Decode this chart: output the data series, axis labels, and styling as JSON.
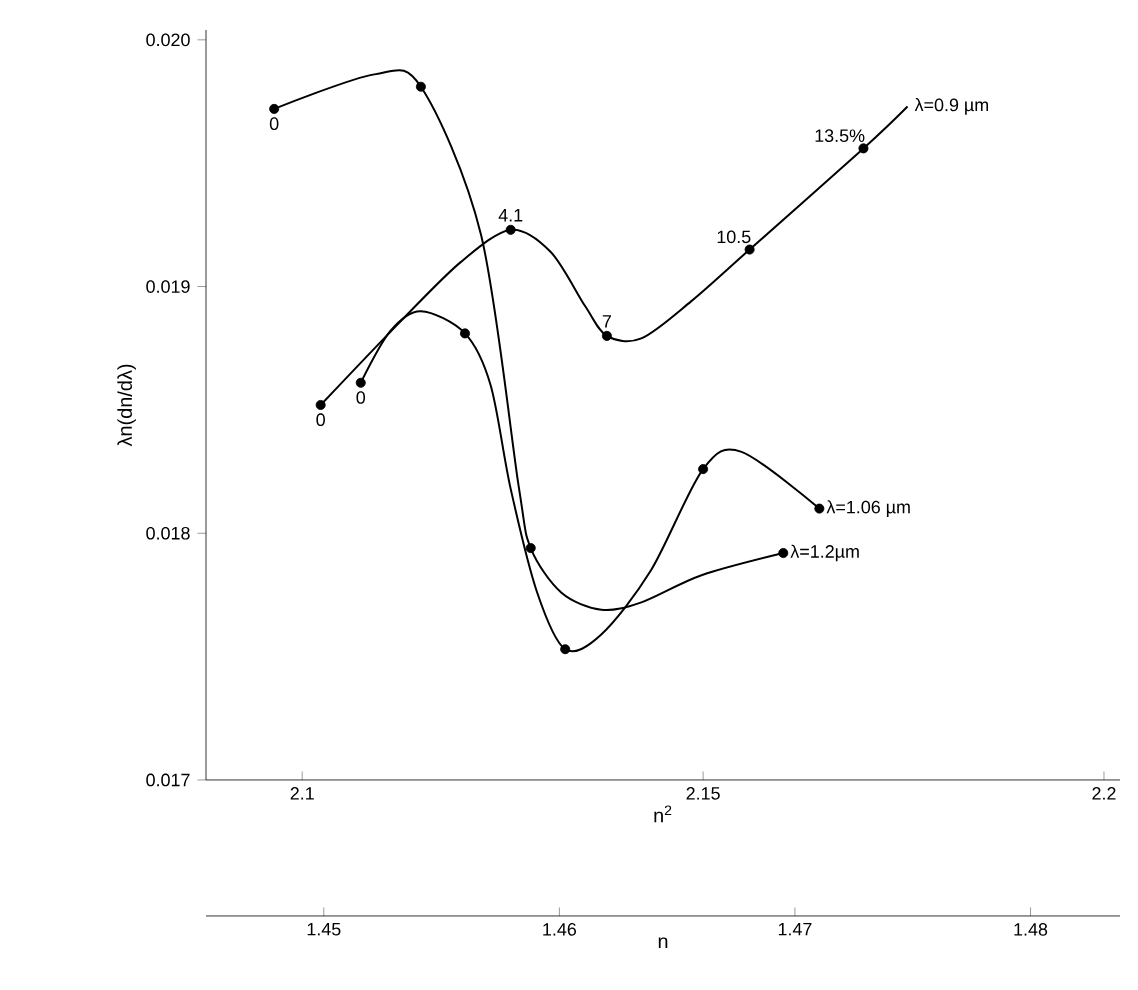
{
  "chart_data": {
    "type": "line",
    "xlabel": "n$^{2}$",
    "ylabel": "λn(dn/dλ)",
    "x2label": "n",
    "xlim": [
      2.088,
      2.202
    ],
    "ylim": [
      0.017,
      0.02004
    ],
    "xticks": [
      2.1,
      2.15,
      2.2
    ],
    "yticks": [
      0.017,
      0.018,
      0.019,
      {
        "value": 0.02,
        "label": "0.020"
      }
    ],
    "x2lim": [
      1.445,
      1.4838
    ],
    "x2ticks": [
      1.45,
      1.46,
      1.47,
      1.48
    ],
    "series": [
      {
        "name": "λ=0.9 µm",
        "color": "#000000",
        "x": [
          2.1023,
          2.1123,
          2.1198,
          2.126,
          2.131,
          2.1353,
          2.138,
          2.1423,
          2.1485,
          2.1558,
          2.17,
          2.1755
        ],
        "values": [
          0.01852,
          0.01886,
          0.0191,
          0.01923,
          0.01914,
          0.01892,
          0.0188,
          0.01879,
          0.01894,
          0.01915,
          0.01956,
          0.01973
        ]
      },
      {
        "name": "λ=1.06 µm",
        "color": "#000000",
        "x": [
          2.1073,
          2.111,
          2.1148,
          2.1203,
          2.1235,
          2.126,
          2.1293,
          2.1328,
          2.1373,
          2.1435,
          2.15,
          2.1548,
          2.1645
        ],
        "values": [
          0.01861,
          0.01882,
          0.0189,
          0.01881,
          0.0186,
          0.01818,
          0.01776,
          0.01753,
          0.01759,
          0.01785,
          0.01826,
          0.01833,
          0.0181
        ]
      },
      {
        "name": "λ=1.2µm",
        "color": "#000000",
        "x": [
          2.0965,
          2.109,
          2.1148,
          2.1223,
          2.127,
          2.1285,
          2.1323,
          2.1373,
          2.1423,
          2.1498,
          2.16
        ],
        "values": [
          0.01972,
          0.01986,
          0.01981,
          0.01921,
          0.01819,
          0.01794,
          0.01776,
          0.01769,
          0.01772,
          0.01783,
          0.01792
        ]
      },
      {
        "color": "#000000",
        "type": "scatter",
        "marker": "circle",
        "x": [
          2.0965,
          2.1148,
          2.1285,
          2.16,
          2.1023,
          2.126,
          2.138,
          2.1558,
          2.17,
          2.1073,
          2.1203,
          2.1328,
          2.15,
          2.1645
        ],
        "values": [
          0.01972,
          0.01981,
          0.01794,
          0.01792,
          0.01852,
          0.01923,
          0.0188,
          0.01915,
          0.01956,
          0.01861,
          0.01881,
          0.01753,
          0.01826,
          0.0181
        ]
      }
    ],
    "annotations": [
      {
        "text": "0",
        "x": 2.0965,
        "y": 0.01972
      },
      {
        "text": "0",
        "x": 2.1023,
        "y": 0.01852
      },
      {
        "text": "0",
        "x": 2.1073,
        "y": 0.01861
      },
      {
        "text": "4.1",
        "x": 2.126,
        "y": 0.01923
      },
      {
        "text": "7",
        "x": 2.138,
        "y": 0.0188
      },
      {
        "text": "10.5",
        "x": 2.1558,
        "y": 0.01915
      },
      {
        "text": "13.5%",
        "x": 2.17,
        "y": 0.01956
      }
    ]
  }
}
